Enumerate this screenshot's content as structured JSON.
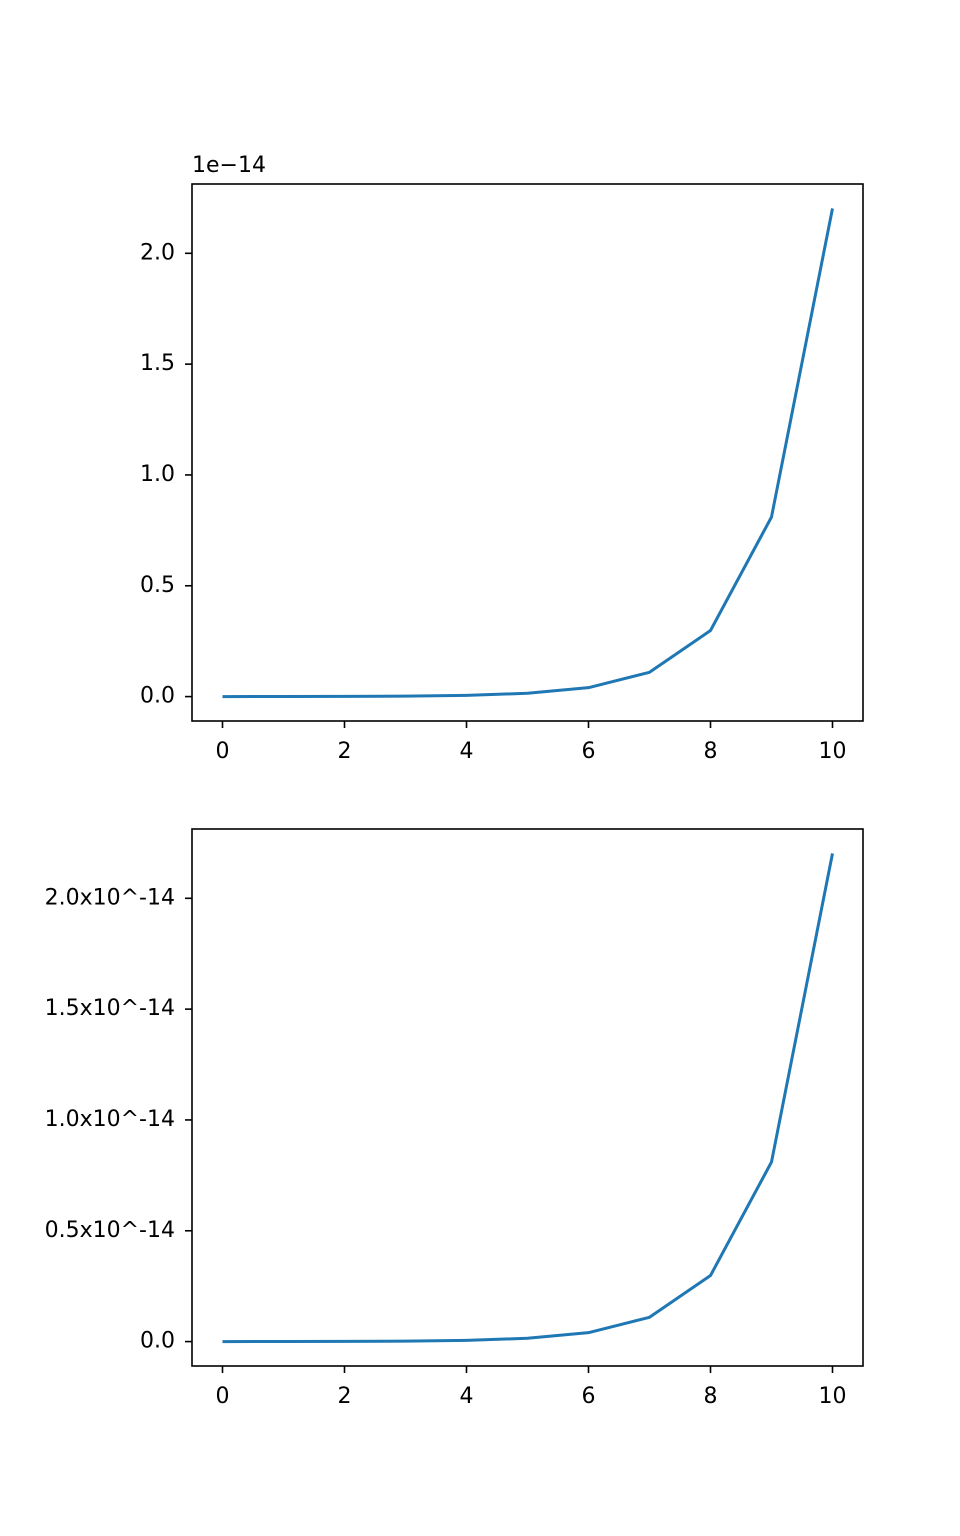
{
  "chart_data": [
    {
      "type": "line",
      "offset_text": "1e−14",
      "x": [
        0,
        1,
        2,
        3,
        4,
        5,
        6,
        7,
        8,
        9,
        10
      ],
      "values": [
        1e-18,
        2.718e-18,
        7.389e-18,
        2.0086e-17,
        5.4598e-17,
        1.4841e-16,
        4.0343e-16,
        1.0966e-15,
        2.981e-15,
        8.1031e-15,
        2.2026e-14
      ],
      "color": "#1f77b4",
      "xlim": [
        -0.5,
        10.5
      ],
      "xticks": [
        0,
        2,
        4,
        6,
        8,
        10
      ],
      "ylim": [
        -1.1013e-15,
        2.3127e-14
      ],
      "yticks": [
        {
          "value": 0,
          "label": "0.0"
        },
        {
          "value": 5e-15,
          "label": "0.5"
        },
        {
          "value": 1e-14,
          "label": "1.0"
        },
        {
          "value": 1.5e-14,
          "label": "1.5"
        },
        {
          "value": 2e-14,
          "label": "2.0"
        }
      ]
    },
    {
      "type": "line",
      "x": [
        0,
        1,
        2,
        3,
        4,
        5,
        6,
        7,
        8,
        9,
        10
      ],
      "values": [
        1e-18,
        2.718e-18,
        7.389e-18,
        2.0086e-17,
        5.4598e-17,
        1.4841e-16,
        4.0343e-16,
        1.0966e-15,
        2.981e-15,
        8.1031e-15,
        2.2026e-14
      ],
      "color": "#1f77b4",
      "xlim": [
        -0.5,
        10.5
      ],
      "xticks": [
        0,
        2,
        4,
        6,
        8,
        10
      ],
      "ylim": [
        -1.1013e-15,
        2.3127e-14
      ],
      "yticks": [
        {
          "value": 0,
          "label": "0.0"
        },
        {
          "value": 5e-15,
          "label": "0.5x10^-14"
        },
        {
          "value": 1e-14,
          "label": "1.0x10^-14"
        },
        {
          "value": 1.5e-14,
          "label": "1.5x10^-14"
        },
        {
          "value": 2e-14,
          "label": "2.0x10^-14"
        }
      ]
    }
  ]
}
